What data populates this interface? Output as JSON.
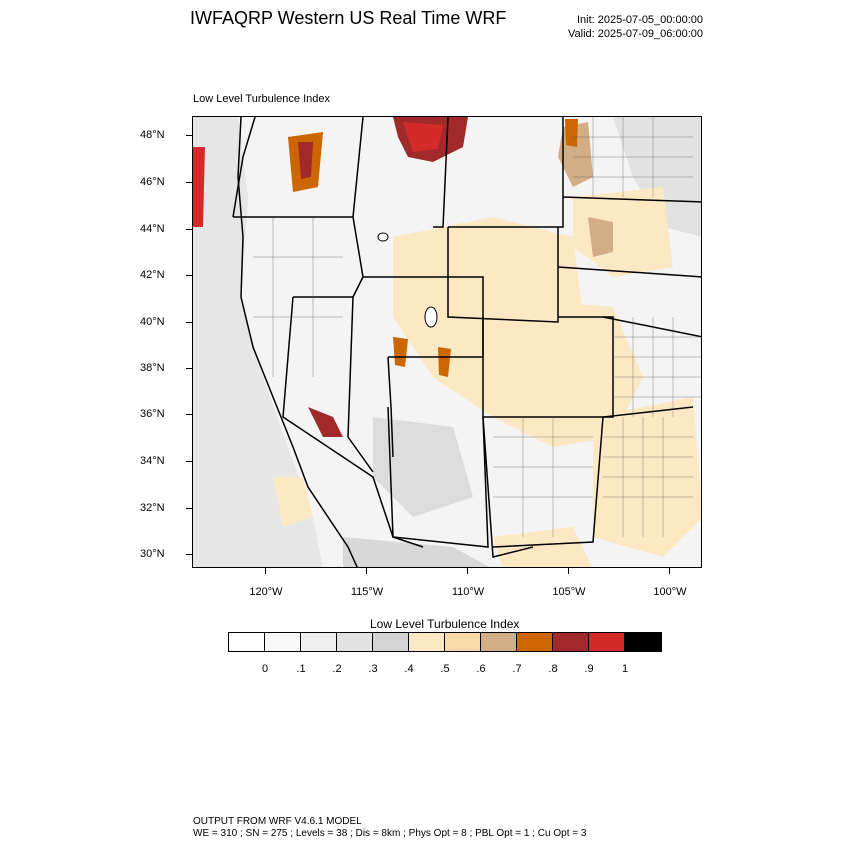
{
  "header": {
    "title": "IWFAQRP Western US Real Time WRF",
    "init": "Init: 2025-07-05_00:00:00",
    "valid": "Valid: 2025-07-09_06:00:00"
  },
  "plot": {
    "title": "Low Level Turbulence Index"
  },
  "map": {
    "lat_labels": [
      "48°N",
      "46°N",
      "44°N",
      "42°N",
      "40°N",
      "38°N",
      "36°N",
      "34°N",
      "32°N",
      "30°N"
    ],
    "lon_labels": [
      "120°W",
      "115°W",
      "110°W",
      "105°W",
      "100°W"
    ]
  },
  "colorbar": {
    "title": "Low Level Turbulence Index",
    "labels": [
      "0",
      ".1",
      ".2",
      ".3",
      ".4",
      ".5",
      ".6",
      ".7",
      ".8",
      ".9",
      "1"
    ],
    "colors": [
      "#ffffff",
      "#f8f8f8",
      "#f0f0f0",
      "#e2e2e2",
      "#d4d4d4",
      "#fde8c4",
      "#f7d9a9",
      "#d2ae86",
      "#cc6600",
      "#a02a2a",
      "#d42a2a",
      "#000000"
    ]
  },
  "footer": {
    "line1": "OUTPUT FROM WRF V4.6.1 MODEL",
    "line2": "WE = 310 ; SN = 275 ; Levels = 38 ; Dis = 8km ; Phys Opt = 8 ; PBL Opt = 1 ; Cu Opt = 3"
  }
}
